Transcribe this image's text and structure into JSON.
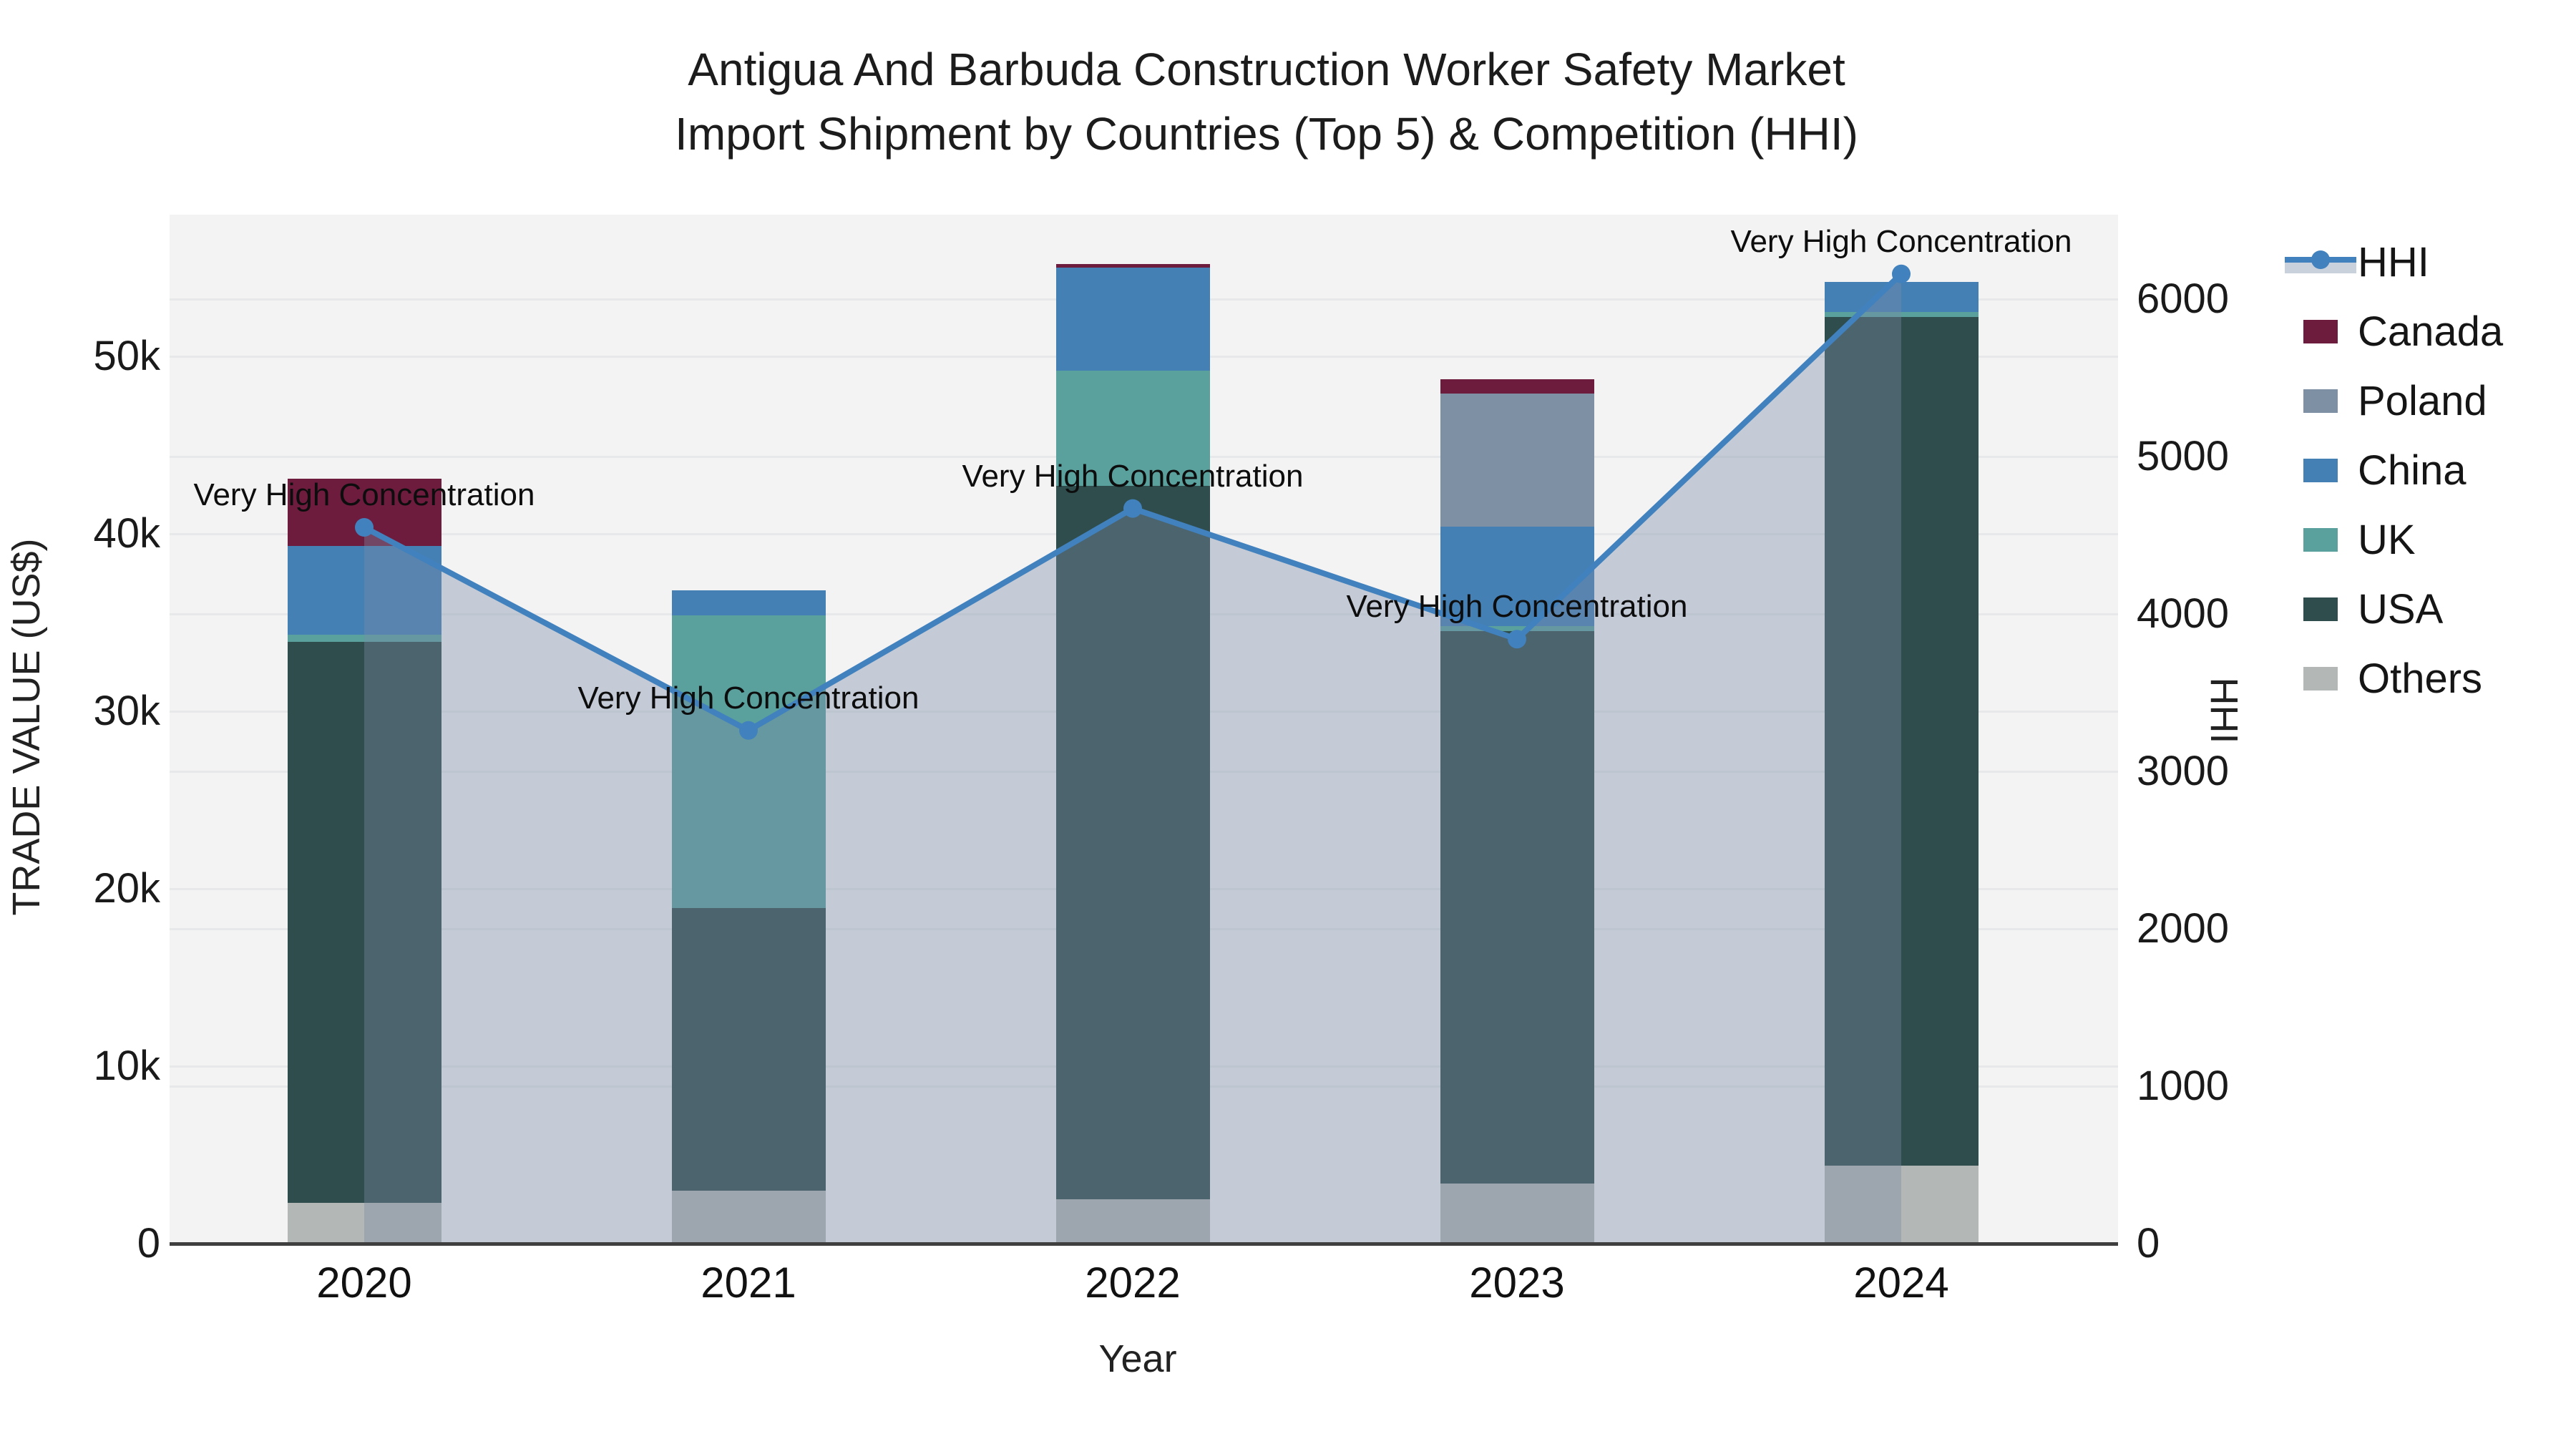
{
  "title_line1": "Antigua And Barbuda Construction Worker Safety Market",
  "title_line2": "Import Shipment by Countries (Top 5) & Competition (HHI)",
  "chart_data": {
    "type": "bar+line",
    "description": "Stacked bar chart of import trade value by origin country with HHI concentration line on secondary axis",
    "categories": [
      "2020",
      "2021",
      "2022",
      "2023",
      "2024"
    ],
    "xlabel": "Year",
    "y_left": {
      "label": "TRADE VALUE (US$)",
      "ticks": [
        {
          "value": 0,
          "label": "0"
        },
        {
          "value": 10000,
          "label": "10k"
        },
        {
          "value": 20000,
          "label": "20k"
        },
        {
          "value": 30000,
          "label": "30k"
        },
        {
          "value": 40000,
          "label": "40k"
        },
        {
          "value": 50000,
          "label": "50k"
        }
      ]
    },
    "y_right": {
      "label": "HHI",
      "ticks": [
        {
          "value": 0,
          "label": "0"
        },
        {
          "value": 1000,
          "label": "1000"
        },
        {
          "value": 2000,
          "label": "2000"
        },
        {
          "value": 3000,
          "label": "3000"
        },
        {
          "value": 4000,
          "label": "4000"
        },
        {
          "value": 5000,
          "label": "5000"
        },
        {
          "value": 6000,
          "label": "6000"
        }
      ]
    },
    "series": [
      {
        "name": "Others",
        "color": "#b3b7b5",
        "values": [
          2300,
          3000,
          2500,
          3400,
          4400
        ]
      },
      {
        "name": "USA",
        "color": "#2f4d4d",
        "values": [
          31600,
          15900,
          40200,
          31100,
          47800
        ]
      },
      {
        "name": "UK",
        "color": "#5aa19e",
        "values": [
          400,
          16500,
          6500,
          300,
          300
        ]
      },
      {
        "name": "China",
        "color": "#4580b5",
        "values": [
          5000,
          1400,
          5800,
          5600,
          1700
        ]
      },
      {
        "name": "Poland",
        "color": "#7e90a4",
        "values": [
          0,
          0,
          0,
          7500,
          0
        ]
      },
      {
        "name": "Canada",
        "color": "#6e1c3e",
        "values": [
          3800,
          0,
          200,
          800,
          0
        ]
      }
    ],
    "line": {
      "name": "HHI",
      "color": "#4181bd",
      "area_color": "rgba(120,140,165,0.38)",
      "values": [
        4550,
        3260,
        4670,
        3840,
        6160
      ],
      "annotations": [
        "Very High Concentration",
        "Very High Concentration",
        "Very High Concentration",
        "Very High Concentration",
        "Very High Concentration"
      ]
    },
    "legend": [
      {
        "label": "HHI",
        "type": "line",
        "color": "#4181bd"
      },
      {
        "label": "Canada",
        "type": "swatch",
        "color": "#6e1c3e"
      },
      {
        "label": "Poland",
        "type": "swatch",
        "color": "#7e90a4"
      },
      {
        "label": "China",
        "type": "swatch",
        "color": "#4580b5"
      },
      {
        "label": "UK",
        "type": "swatch",
        "color": "#5aa19e"
      },
      {
        "label": "USA",
        "type": "swatch",
        "color": "#2f4d4d"
      },
      {
        "label": "Others",
        "type": "swatch",
        "color": "#b3b7b5"
      }
    ],
    "plot_bg_color": "#f3f3f4",
    "grid_color": "#e7e8ea",
    "axis_line_color": "#3f3f3f",
    "grid_on": true,
    "legend_position": "right"
  }
}
